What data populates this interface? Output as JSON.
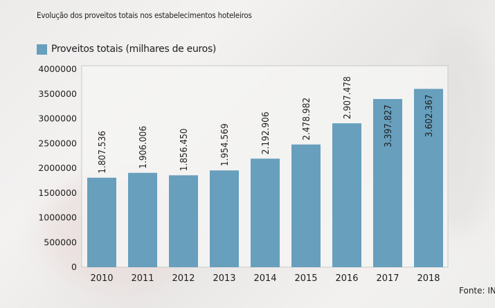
{
  "chart_data": {
    "type": "bar",
    "title": "Evolução dos proveitos totais nos estabelecimentos hoteleiros",
    "legend": {
      "label": "Proveitos totais (milhares de euros)",
      "position": "top-left"
    },
    "categories": [
      "2010",
      "2011",
      "2012",
      "2013",
      "2014",
      "2015",
      "2016",
      "2017",
      "2018"
    ],
    "values": [
      1807536,
      1906006,
      1856450,
      1954569,
      2192906,
      2478982,
      2907478,
      3397827,
      3602367
    ],
    "data_labels": [
      "1.807.536",
      "1.906.006",
      "1.856.450",
      "1.954.569",
      "2.192.906",
      "2.478.982",
      "2.907.478",
      "3.397.827",
      "3.602.367"
    ],
    "label_inside": [
      false,
      false,
      false,
      false,
      false,
      false,
      false,
      true,
      true
    ],
    "yticks": [
      0,
      500000,
      1000000,
      1500000,
      2000000,
      2500000,
      3000000,
      3500000,
      4000000
    ],
    "ylim": [
      0,
      4000000
    ],
    "xlabel": "",
    "ylabel": "",
    "grid": false,
    "source": "Fonte: INE",
    "colors": {
      "bar": "#679fbd",
      "plot_bg": "#f4f4f3",
      "plot_border": "#c9c9c9"
    }
  }
}
